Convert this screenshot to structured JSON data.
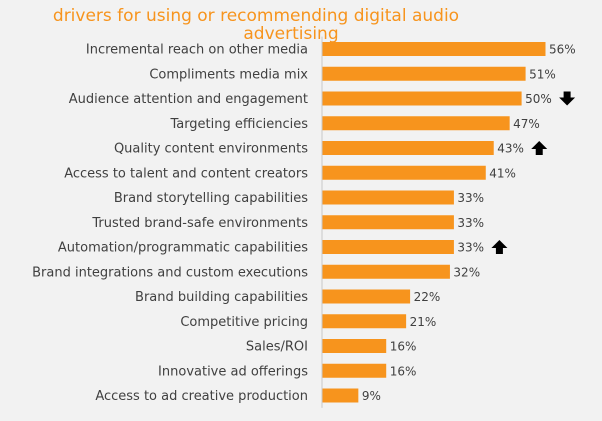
{
  "chart_data": {
    "type": "bar",
    "orientation": "horizontal",
    "title": "drivers for using or recommending digital audio advertising",
    "categories": [
      "Incremental reach on other media",
      "Compliments media mix",
      "Audience attention and engagement",
      "Targeting efficiencies",
      "Quality content environments",
      "Access to talent and content creators",
      "Brand storytelling capabilities",
      "Trusted brand-safe environments",
      "Automation/programmatic capabilities",
      "Brand integrations and custom executions",
      "Brand building capabilities",
      "Competitive pricing",
      "Sales/ROI",
      "Innovative ad offerings",
      "Access to ad creative production"
    ],
    "values": [
      56,
      51,
      50,
      47,
      43,
      41,
      33,
      33,
      33,
      32,
      22,
      21,
      16,
      16,
      9
    ],
    "value_labels": [
      "56%",
      "51%",
      "50%",
      "47%",
      "43%",
      "41%",
      "33%",
      "33%",
      "33%",
      "32%",
      "22%",
      "21%",
      "16%",
      "16%",
      "9%"
    ],
    "trend_arrows": [
      null,
      null,
      "down",
      null,
      "up",
      null,
      null,
      null,
      "up",
      null,
      null,
      null,
      null,
      null,
      null
    ],
    "xlim": [
      0,
      60
    ],
    "grid": false,
    "bar_color": "#f7941d",
    "arrow_color": "#000000",
    "axis_color": "#c8c8c8"
  }
}
